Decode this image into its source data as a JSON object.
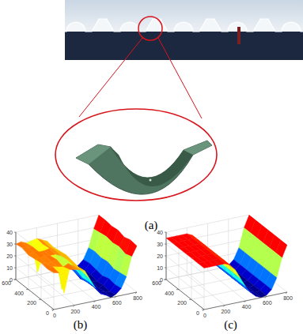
{
  "photo": {
    "label": "(a)"
  },
  "chart_data": [
    {
      "type": "surface",
      "label": "(b)",
      "grid": true,
      "x": [
        0,
        50,
        100,
        150,
        200,
        250,
        300,
        350,
        400,
        450,
        500,
        550,
        600,
        650,
        700,
        750,
        800
      ],
      "y": [
        0,
        100,
        200,
        300,
        400,
        500,
        600
      ],
      "z": [
        [
          31,
          30,
          12,
          31,
          30,
          29,
          27,
          19,
          11,
          5,
          3,
          0,
          2,
          6,
          15,
          31,
          39
        ],
        [
          30,
          31,
          30,
          29,
          31,
          28,
          26,
          20,
          12,
          7,
          1,
          1,
          0,
          5,
          14,
          29,
          40
        ],
        [
          31,
          29,
          30,
          31,
          5,
          29,
          27,
          21,
          11,
          6,
          2,
          0,
          1,
          6,
          13,
          31,
          38
        ],
        [
          30,
          30,
          31,
          30,
          30,
          28,
          28,
          19,
          13,
          5,
          2,
          1,
          0,
          4,
          15,
          30,
          40
        ],
        [
          29,
          31,
          30,
          30,
          31,
          29,
          27,
          20,
          12,
          6,
          0,
          0,
          2,
          5,
          14,
          31,
          39
        ],
        [
          31,
          30,
          30,
          8,
          30,
          28,
          26,
          21,
          11,
          7,
          3,
          1,
          1,
          6,
          15,
          30,
          40
        ],
        [
          30,
          31,
          29,
          30,
          31,
          29,
          27,
          20,
          12,
          6,
          2,
          0,
          1,
          5,
          14,
          29,
          40
        ]
      ],
      "xlim": [
        0,
        800
      ],
      "ylim": [
        0,
        600
      ],
      "zlim": [
        0,
        40
      ],
      "xticks": [
        0,
        200,
        400,
        600,
        800
      ],
      "yticks": [
        0,
        200,
        400,
        600
      ],
      "zticks": [
        0,
        10,
        20,
        30,
        40
      ]
    },
    {
      "type": "surface",
      "label": "(c)",
      "grid": true,
      "x": [
        0,
        50,
        100,
        150,
        200,
        250,
        300,
        350,
        400,
        450,
        500,
        550,
        600,
        650,
        700,
        750,
        800
      ],
      "y": [
        0,
        100,
        200,
        300,
        400,
        500,
        600
      ],
      "z": [
        [
          35,
          35,
          35,
          35,
          35,
          33,
          28,
          20,
          12,
          6,
          2,
          0,
          1,
          5,
          14,
          30,
          40
        ],
        [
          35,
          35,
          35,
          35,
          35,
          33,
          28,
          20,
          12,
          6,
          2,
          0,
          1,
          5,
          14,
          30,
          40
        ],
        [
          35,
          35,
          35,
          35,
          35,
          33,
          28,
          20,
          12,
          6,
          2,
          0,
          1,
          5,
          14,
          30,
          40
        ],
        [
          35,
          35,
          35,
          35,
          35,
          33,
          28,
          20,
          12,
          6,
          2,
          0,
          1,
          5,
          14,
          30,
          40
        ],
        [
          35,
          35,
          35,
          35,
          35,
          33,
          28,
          20,
          12,
          6,
          2,
          0,
          1,
          5,
          14,
          30,
          40
        ],
        [
          35,
          35,
          35,
          35,
          35,
          33,
          28,
          20,
          12,
          6,
          2,
          0,
          1,
          5,
          14,
          30,
          40
        ],
        [
          35,
          35,
          35,
          35,
          35,
          33,
          28,
          20,
          12,
          6,
          2,
          0,
          1,
          5,
          14,
          30,
          40
        ]
      ],
      "xlim": [
        0,
        800
      ],
      "ylim": [
        0,
        600
      ],
      "zlim": [
        0,
        40
      ],
      "xticks": [
        0,
        200,
        400,
        600,
        800
      ],
      "yticks": [
        0,
        200,
        400,
        600
      ],
      "zticks": [
        0,
        10,
        20,
        30,
        40
      ]
    }
  ]
}
